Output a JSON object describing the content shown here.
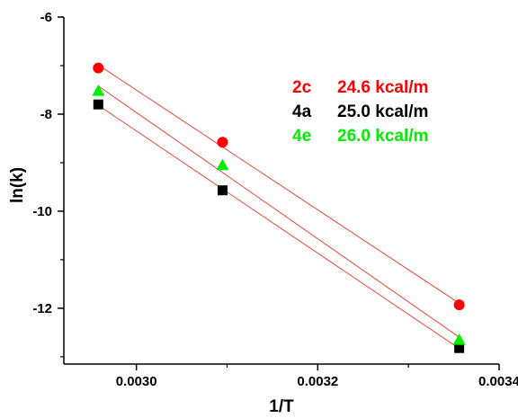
{
  "chart_data": {
    "type": "scatter",
    "xlabel": "1/T",
    "ylabel": "ln(k)",
    "xlim": [
      0.00292,
      0.0034
    ],
    "ylim": [
      -13.15,
      -6.0
    ],
    "x_ticks": [
      0.003,
      0.0032,
      0.0034
    ],
    "x_tick_labels": [
      "0.0030",
      "0.0032",
      "0.0034"
    ],
    "y_ticks": [
      -6,
      -8,
      -10,
      -12
    ],
    "y_tick_labels": [
      "-6",
      "-8",
      "-10",
      "-12"
    ],
    "fit_line_color": "#e8473a",
    "grid": false,
    "legend_position": "top-right",
    "series": [
      {
        "name": "2c",
        "energy_label": "24.6 kcal/m",
        "color": "#ff0000",
        "marker": "circle",
        "x": [
          0.002958,
          0.003095,
          0.003356
        ],
        "y": [
          -7.05,
          -8.58,
          -11.93
        ]
      },
      {
        "name": "4a",
        "energy_label": "25.0 kcal/m",
        "color": "#000000",
        "marker": "square",
        "x": [
          0.002958,
          0.003095,
          0.003356
        ],
        "y": [
          -7.8,
          -9.57,
          -12.82
        ]
      },
      {
        "name": "4e",
        "energy_label": "26.0 kcal/m",
        "color": "#00ee00",
        "marker": "triangle",
        "x": [
          0.002958,
          0.003095,
          0.003356
        ],
        "y": [
          -7.52,
          -9.05,
          -12.65
        ]
      }
    ]
  }
}
